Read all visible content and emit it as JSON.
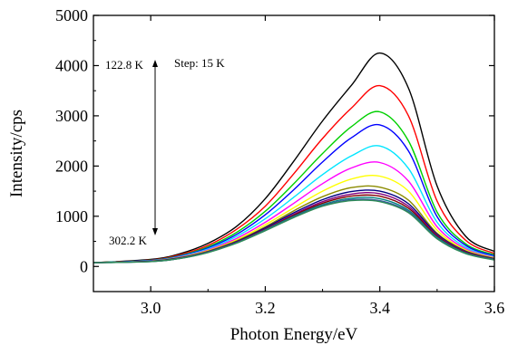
{
  "chart_data": {
    "type": "line",
    "title": "",
    "xlabel": "Photon Energy/eV",
    "ylabel": "Intensity/cps",
    "xlim": [
      2.9,
      3.6
    ],
    "ylim": [
      -500,
      5000
    ],
    "x_ticks": [
      3.0,
      3.2,
      3.4,
      3.6
    ],
    "x_tick_labels": [
      "3.0",
      "3.2",
      "3.4",
      "3.6"
    ],
    "y_ticks": [
      0,
      1000,
      2000,
      3000,
      4000,
      5000
    ],
    "y_tick_labels": [
      "0",
      "1000",
      "2000",
      "3000",
      "4000",
      "5000"
    ],
    "grid": false,
    "legend": "none",
    "annotations": {
      "top_temperature": "122.8 K",
      "bottom_temperature": "302.2 K",
      "step": "Step: 15 K"
    },
    "x": [
      2.9,
      3.0,
      3.05,
      3.1,
      3.15,
      3.2,
      3.25,
      3.3,
      3.35,
      3.4,
      3.45,
      3.5,
      3.55,
      3.6
    ],
    "series": [
      {
        "color": "#000000",
        "values": [
          75,
          140,
          250,
          460,
          800,
          1350,
          2100,
          2900,
          3600,
          4250,
          3550,
          1600,
          600,
          300
        ]
      },
      {
        "color": "#ff0000",
        "values": [
          75,
          130,
          230,
          420,
          740,
          1200,
          1850,
          2550,
          3150,
          3600,
          3000,
          1300,
          520,
          260
        ]
      },
      {
        "color": "#00d000",
        "values": [
          75,
          125,
          215,
          390,
          680,
          1100,
          1650,
          2250,
          2780,
          3080,
          2500,
          1080,
          450,
          230
        ]
      },
      {
        "color": "#0000ff",
        "values": [
          75,
          120,
          205,
          370,
          640,
          1030,
          1530,
          2080,
          2560,
          2820,
          2300,
          990,
          420,
          210
        ]
      },
      {
        "color": "#00e5ff",
        "values": [
          75,
          115,
          195,
          350,
          600,
          950,
          1380,
          1830,
          2200,
          2400,
          1950,
          880,
          380,
          190
        ]
      },
      {
        "color": "#ff00ff",
        "values": [
          75,
          110,
          185,
          330,
          560,
          880,
          1260,
          1650,
          1960,
          2070,
          1700,
          790,
          350,
          180
        ]
      },
      {
        "color": "#ffff00",
        "values": [
          75,
          108,
          180,
          315,
          530,
          830,
          1170,
          1500,
          1740,
          1800,
          1500,
          720,
          330,
          170
        ]
      },
      {
        "color": "#8b8b00",
        "values": [
          75,
          106,
          175,
          305,
          510,
          790,
          1110,
          1390,
          1570,
          1580,
          1320,
          660,
          310,
          160
        ]
      },
      {
        "color": "#000080",
        "values": [
          75,
          104,
          170,
          295,
          495,
          770,
          1070,
          1330,
          1490,
          1500,
          1250,
          640,
          300,
          155
        ]
      },
      {
        "color": "#800080",
        "values": [
          75,
          102,
          165,
          290,
          485,
          750,
          1040,
          1290,
          1440,
          1450,
          1200,
          620,
          290,
          150
        ]
      },
      {
        "color": "#800000",
        "values": [
          75,
          100,
          162,
          285,
          480,
          740,
          1020,
          1260,
          1400,
          1400,
          1160,
          600,
          280,
          145
        ]
      },
      {
        "color": "#008080",
        "values": [
          75,
          99,
          160,
          282,
          475,
          730,
          1000,
          1230,
          1360,
          1350,
          1120,
          580,
          270,
          140
        ]
      },
      {
        "color": "#3b5ba0",
        "values": [
          75,
          98,
          158,
          280,
          470,
          720,
          985,
          1210,
          1330,
          1310,
          1090,
          560,
          260,
          135
        ]
      },
      {
        "color": "#2e8b57",
        "values": [
          75,
          97,
          156,
          278,
          465,
          712,
          975,
          1200,
          1310,
          1290,
          1070,
          550,
          255,
          130
        ]
      }
    ]
  }
}
